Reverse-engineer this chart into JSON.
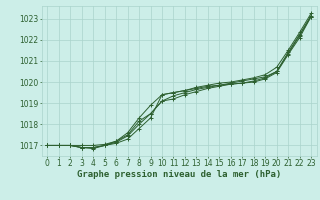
{
  "title": "Graphe pression niveau de la mer (hPa)",
  "bg_color": "#cceee8",
  "grid_color": "#aad4cc",
  "line_color": "#2d6030",
  "xlim": [
    -0.5,
    23.5
  ],
  "ylim": [
    1016.5,
    1023.6
  ],
  "xticks": [
    0,
    1,
    2,
    3,
    4,
    5,
    6,
    7,
    8,
    9,
    10,
    11,
    12,
    13,
    14,
    15,
    16,
    17,
    18,
    19,
    20,
    21,
    22,
    23
  ],
  "yticks": [
    1017,
    1018,
    1019,
    1020,
    1021,
    1022,
    1023
  ],
  "series": [
    [
      1017.0,
      1017.0,
      1017.0,
      1016.9,
      1016.9,
      1017.0,
      1017.1,
      1017.3,
      1017.8,
      1018.3,
      1019.4,
      1019.5,
      1019.6,
      1019.7,
      1019.8,
      1019.85,
      1019.9,
      1019.95,
      1020.0,
      1020.15,
      1020.45,
      1021.3,
      1022.1,
      1023.1
    ],
    [
      1017.0,
      1017.0,
      1017.0,
      1017.0,
      1017.0,
      1017.05,
      1017.2,
      1017.5,
      1018.15,
      1018.5,
      1019.1,
      1019.35,
      1019.5,
      1019.65,
      1019.75,
      1019.85,
      1019.95,
      1020.05,
      1020.15,
      1020.25,
      1020.5,
      1021.4,
      1022.25,
      1023.15
    ],
    [
      1017.0,
      1017.0,
      1017.0,
      1016.9,
      1016.9,
      1017.0,
      1017.2,
      1017.6,
      1018.3,
      1018.9,
      1019.4,
      1019.5,
      1019.6,
      1019.75,
      1019.85,
      1019.95,
      1020.0,
      1020.1,
      1020.2,
      1020.35,
      1020.7,
      1021.5,
      1022.35,
      1023.25
    ],
    [
      1017.0,
      1017.0,
      1017.0,
      1016.9,
      1016.85,
      1017.0,
      1017.15,
      1017.45,
      1018.0,
      1018.5,
      1019.1,
      1019.2,
      1019.4,
      1019.55,
      1019.7,
      1019.8,
      1019.9,
      1019.95,
      1020.05,
      1020.2,
      1020.5,
      1021.35,
      1022.2,
      1023.1
    ]
  ],
  "tick_fontsize": 5.5,
  "title_fontsize": 6.5,
  "linewidth": 0.7,
  "markersize": 2.5
}
